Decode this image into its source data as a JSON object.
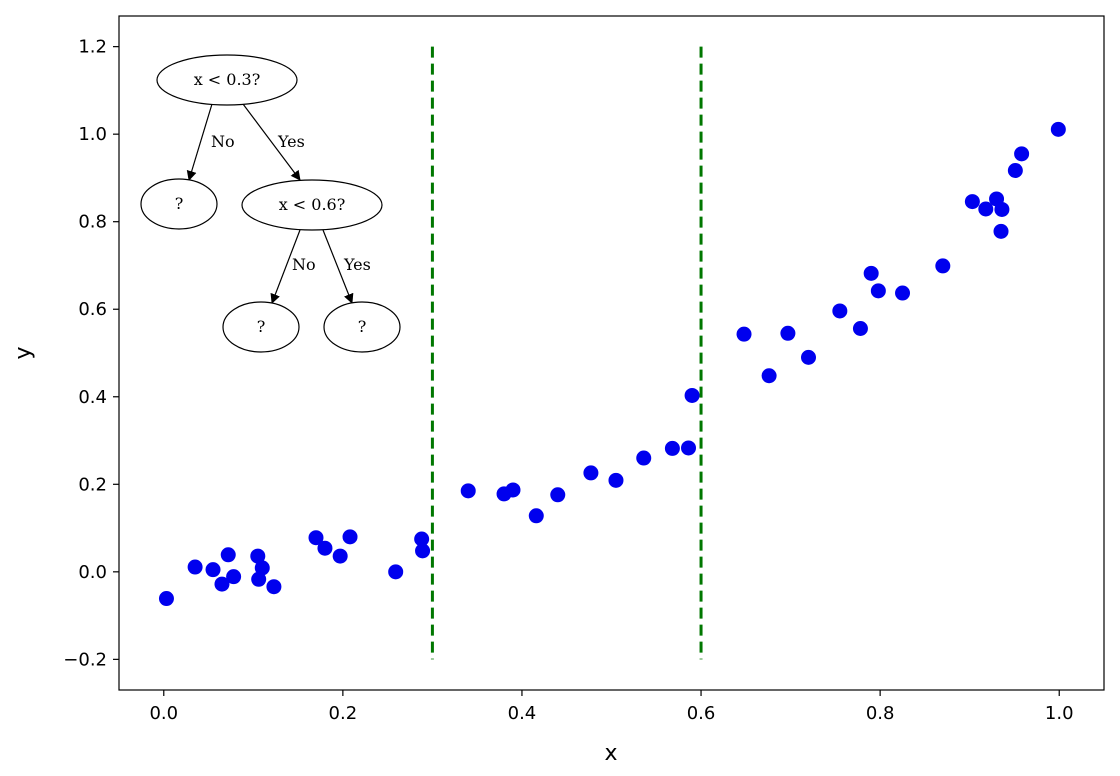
{
  "chart_data": {
    "type": "scatter",
    "title": "",
    "xlabel": "x",
    "ylabel": "y",
    "xlim": [
      -0.05,
      1.05
    ],
    "ylim": [
      -0.27,
      1.27
    ],
    "xticks": [
      0.0,
      0.2,
      0.4,
      0.6,
      0.8,
      1.0
    ],
    "xtick_labels": [
      "0.0",
      "0.2",
      "0.4",
      "0.6",
      "0.8",
      "1.0"
    ],
    "yticks": [
      -0.2,
      0.0,
      0.2,
      0.4,
      0.6,
      0.8,
      1.0,
      1.2
    ],
    "ytick_labels": [
      "−0.2",
      "0.0",
      "0.2",
      "0.4",
      "0.6",
      "0.8",
      "1.0",
      "1.2"
    ],
    "grid": false,
    "point_color": "#0000ee",
    "split_color": "#007700",
    "series": [
      {
        "x": [
          0.003,
          0.035,
          0.055,
          0.065,
          0.072,
          0.078,
          0.105,
          0.106,
          0.11,
          0.123,
          0.17,
          0.18,
          0.197,
          0.208,
          0.259,
          0.288,
          0.289,
          0.34,
          0.38,
          0.39,
          0.416,
          0.44,
          0.477,
          0.505,
          0.536,
          0.568,
          0.586,
          0.59,
          0.648,
          0.676,
          0.697,
          0.72,
          0.755,
          0.778,
          0.79,
          0.798,
          0.825,
          0.87,
          0.903,
          0.918,
          0.93,
          0.935,
          0.936,
          0.951,
          0.958,
          0.999
        ],
        "y": [
          -0.061,
          0.011,
          0.005,
          -0.028,
          0.039,
          -0.011,
          0.036,
          -0.017,
          0.009,
          -0.034,
          0.078,
          0.054,
          0.036,
          0.08,
          0.0,
          0.075,
          0.048,
          0.185,
          0.178,
          0.187,
          0.128,
          0.176,
          0.226,
          0.209,
          0.26,
          0.282,
          0.283,
          0.403,
          0.543,
          0.448,
          0.545,
          0.49,
          0.596,
          0.556,
          0.682,
          0.642,
          0.637,
          0.699,
          0.846,
          0.829,
          0.852,
          0.778,
          0.828,
          0.917,
          0.955,
          1.011
        ]
      }
    ],
    "split_lines": [
      {
        "x": 0.3,
        "y_range": [
          -0.2,
          1.2
        ],
        "style": "dashed"
      },
      {
        "x": 0.6,
        "y_range": [
          -0.2,
          1.2
        ],
        "style": "dashed"
      }
    ],
    "annotation_tree": {
      "root": "x < 0.3?",
      "root_no_label": "No",
      "root_yes_label": "Yes",
      "leaf_left": "?",
      "inner": "x < 0.6?",
      "inner_no_label": "No",
      "inner_yes_label": "Yes",
      "leaf_mid": "?",
      "leaf_right": "?"
    }
  }
}
